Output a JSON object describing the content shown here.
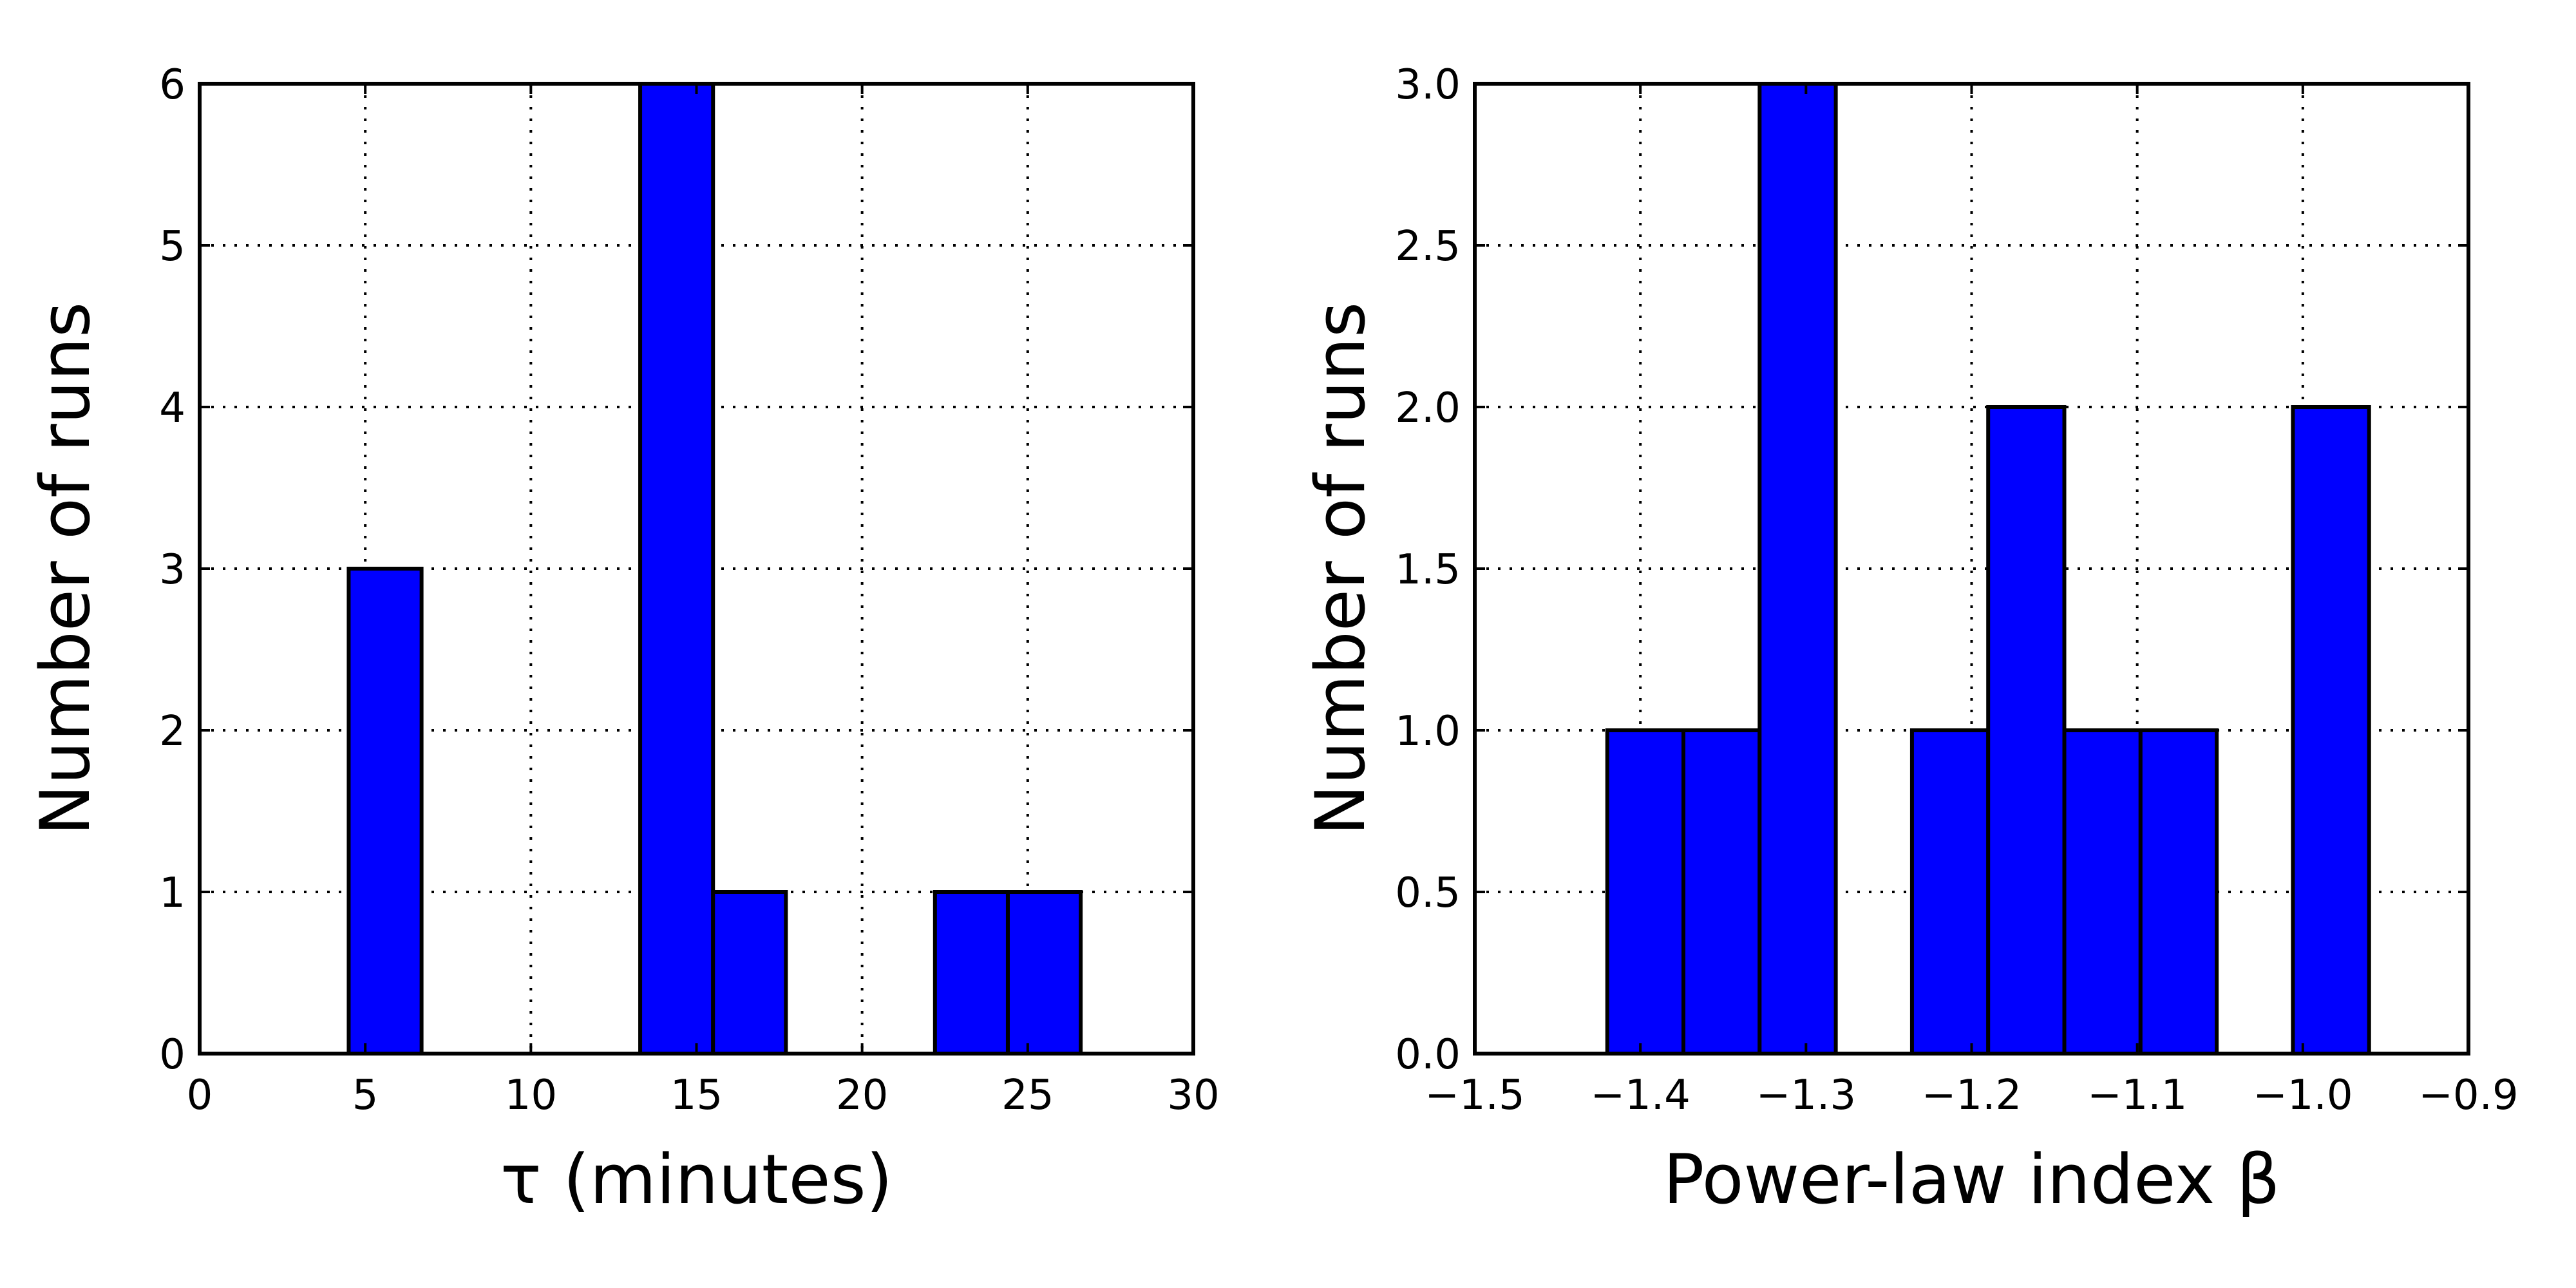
{
  "chart_data": [
    {
      "type": "bar",
      "subtype": "histogram",
      "xlabel": "τ (minutes)",
      "ylabel": "Number of runs",
      "xlim": [
        0,
        30
      ],
      "ylim": [
        0,
        6
      ],
      "xticks": [
        "0",
        "5",
        "10",
        "15",
        "20",
        "25",
        "30"
      ],
      "yticks": [
        "0",
        "1",
        "2",
        "3",
        "4",
        "5",
        "6"
      ],
      "xtick_values": [
        0,
        5,
        10,
        15,
        20,
        25,
        30
      ],
      "ytick_values": [
        0,
        1,
        2,
        3,
        4,
        5,
        6
      ],
      "grid": true,
      "bar_color": "#0000ff",
      "bins": [
        {
          "x0": 4.5,
          "x1": 6.7,
          "value": 3
        },
        {
          "x0": 13.3,
          "x1": 15.5,
          "value": 6
        },
        {
          "x0": 15.5,
          "x1": 17.7,
          "value": 1
        },
        {
          "x0": 22.2,
          "x1": 24.4,
          "value": 1
        },
        {
          "x0": 24.4,
          "x1": 26.6,
          "value": 1
        }
      ]
    },
    {
      "type": "bar",
      "subtype": "histogram",
      "xlabel": "Power-law index β",
      "ylabel": "Number of runs",
      "xlim": [
        -1.5,
        -0.9
      ],
      "ylim": [
        0,
        3
      ],
      "xticks": [
        "−1.5",
        "−1.4",
        "−1.3",
        "−1.2",
        "−1.1",
        "−1.0",
        "−0.9"
      ],
      "yticks": [
        "0.0",
        "0.5",
        "1.0",
        "1.5",
        "2.0",
        "2.5",
        "3.0"
      ],
      "xtick_values": [
        -1.5,
        -1.4,
        -1.3,
        -1.2,
        -1.1,
        -1.0,
        -0.9
      ],
      "ytick_values": [
        0,
        0.5,
        1.0,
        1.5,
        2.0,
        2.5,
        3.0
      ],
      "grid": true,
      "bar_color": "#0000ff",
      "bins": [
        {
          "x0": -1.42,
          "x1": -1.374,
          "value": 1
        },
        {
          "x0": -1.374,
          "x1": -1.328,
          "value": 1
        },
        {
          "x0": -1.328,
          "x1": -1.282,
          "value": 3
        },
        {
          "x0": -1.282,
          "x1": -1.236,
          "value": 0
        },
        {
          "x0": -1.236,
          "x1": -1.19,
          "value": 1
        },
        {
          "x0": -1.19,
          "x1": -1.144,
          "value": 2
        },
        {
          "x0": -1.144,
          "x1": -1.098,
          "value": 1
        },
        {
          "x0": -1.098,
          "x1": -1.052,
          "value": 1
        },
        {
          "x0": -1.052,
          "x1": -1.006,
          "value": 0
        },
        {
          "x0": -1.006,
          "x1": -0.96,
          "value": 2
        }
      ]
    }
  ]
}
